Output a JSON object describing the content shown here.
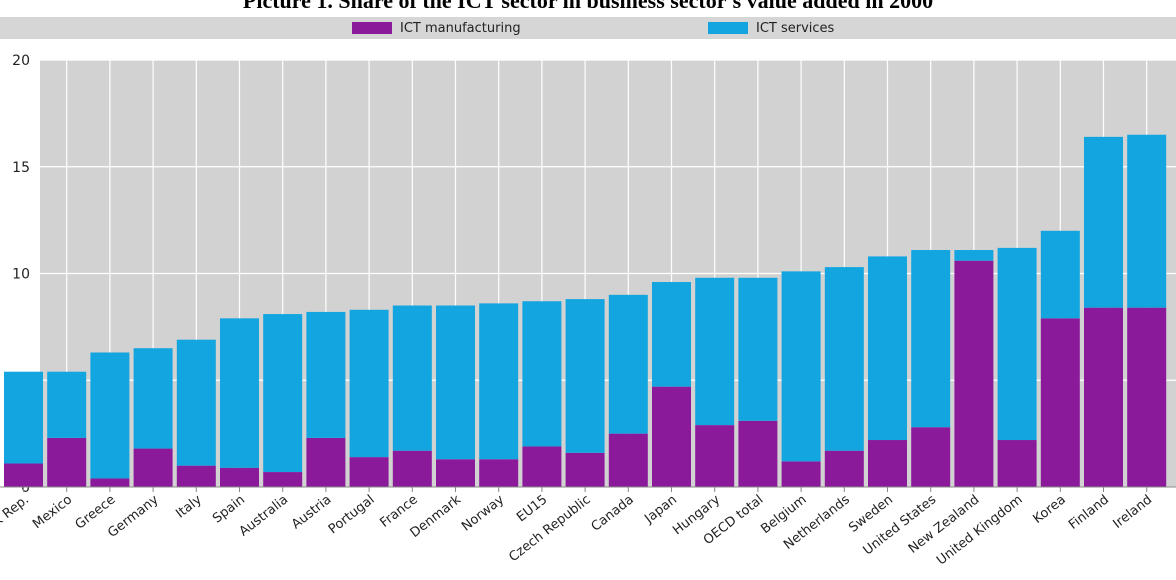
{
  "title": "Picture 1. Share of the ICT sector in business sector's value added in 2000",
  "legend": [
    {
      "label": "ICT manufacturing",
      "color": "#8b1a9b"
    },
    {
      "label": "ICT services",
      "color": "#12a5e0"
    }
  ],
  "chart_data": {
    "type": "bar",
    "stacked": true,
    "title": "Picture 1. Share of the ICT sector in business sector's value added in 2000",
    "xlabel": "",
    "ylabel": "",
    "ylim": [
      0,
      20
    ],
    "yticks": [
      0,
      5,
      10,
      15,
      20
    ],
    "grid": true,
    "legend_position": "top",
    "categories": [
      "Slovak Rep.",
      "Mexico",
      "Greece",
      "Germany",
      "Italy",
      "Spain",
      "Australia",
      "Austria",
      "Portugal",
      "France",
      "Denmark",
      "Norway",
      "EU15",
      "Czech Republic",
      "Canada",
      "Japan",
      "Hungary",
      "OECD total",
      "Belgium",
      "Netherlands",
      "Sweden",
      "United States",
      "New Zealand",
      "United Kingdom",
      "Korea",
      "Finland",
      "Ireland"
    ],
    "series": [
      {
        "name": "ICT manufacturing",
        "color": "#8b1a9b",
        "values": [
          1.1,
          2.3,
          0.4,
          1.8,
          1.0,
          0.9,
          0.7,
          2.3,
          1.4,
          1.7,
          1.3,
          1.3,
          1.9,
          1.6,
          2.5,
          4.7,
          2.9,
          3.1,
          1.2,
          1.7,
          2.2,
          2.8,
          10.6,
          2.2,
          7.9,
          8.4,
          8.4
        ]
      },
      {
        "name": "ICT services",
        "color": "#12a5e0",
        "values": [
          4.3,
          3.1,
          5.9,
          4.7,
          5.9,
          7.0,
          7.4,
          5.9,
          6.9,
          6.8,
          7.2,
          7.3,
          6.8,
          7.2,
          6.5,
          4.9,
          6.9,
          6.7,
          8.9,
          8.6,
          8.6,
          8.3,
          0.5,
          9.0,
          4.1,
          8.0,
          8.1
        ]
      }
    ]
  }
}
